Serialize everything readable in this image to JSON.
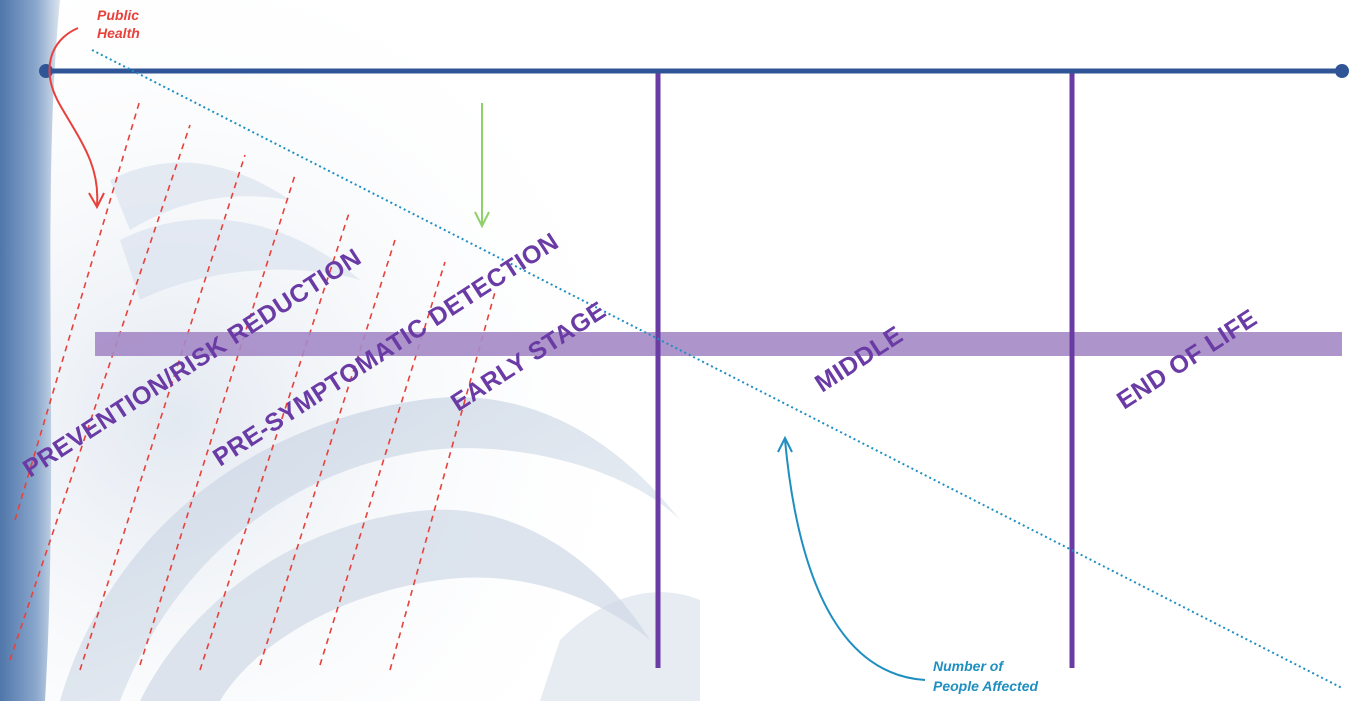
{
  "annotations": {
    "public_health_line1": "Public",
    "public_health_line2": "Health",
    "people_affected_line1": "Number of",
    "people_affected_line2": "People Affected"
  },
  "stages": [
    {
      "label": "PREVENTION/RISK REDUCTION"
    },
    {
      "label": "PRE-SYMPTOMATIC DETECTION"
    },
    {
      "label": "EARLY STAGE"
    },
    {
      "label": "MIDDLE"
    },
    {
      "label": "END OF LIFE"
    }
  ],
  "colors": {
    "timeline": "#2f5597",
    "divider": "#6a3aa5",
    "band": "#a48ac6",
    "stage_text": "#6a3aa5",
    "public_health": "#e8413c",
    "people_affected": "#1f8fc1",
    "arrow_green": "#8fd06a",
    "background_left": "#5f82b0"
  },
  "icons": {
    "public_health_arrow": "curved-arrow-down-icon",
    "people_affected_arrow": "curved-arrow-up-icon",
    "green_arrow": "arrow-down-icon"
  }
}
